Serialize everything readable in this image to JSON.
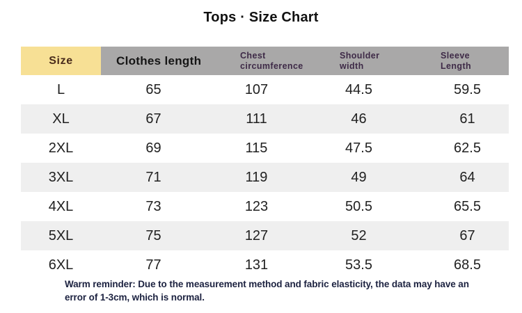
{
  "title": "Tops · Size Chart",
  "table": {
    "header": {
      "size": "Size",
      "clothes_length": "Clothes length",
      "chest_line1": "Chest",
      "chest_line2": "circumference",
      "shoulder_line1": "Shoulder",
      "shoulder_line2": "width",
      "sleeve_line1": "Sleeve",
      "sleeve_line2": "Length"
    },
    "rows": [
      {
        "size": "L",
        "clothes_length": "65",
        "chest": "107",
        "shoulder": "44.5",
        "sleeve": "59.5"
      },
      {
        "size": "XL",
        "clothes_length": "67",
        "chest": "111",
        "shoulder": "46",
        "sleeve": "61"
      },
      {
        "size": "2XL",
        "clothes_length": "69",
        "chest": "115",
        "shoulder": "47.5",
        "sleeve": "62.5"
      },
      {
        "size": "3XL",
        "clothes_length": "71",
        "chest": "119",
        "shoulder": "49",
        "sleeve": "64"
      },
      {
        "size": "4XL",
        "clothes_length": "73",
        "chest": "123",
        "shoulder": "50.5",
        "sleeve": "65.5"
      },
      {
        "size": "5XL",
        "clothes_length": "75",
        "chest": "127",
        "shoulder": "52",
        "sleeve": "67"
      },
      {
        "size": "6XL",
        "clothes_length": "77",
        "chest": "131",
        "shoulder": "53.5",
        "sleeve": "68.5"
      }
    ]
  },
  "reminder": "Warm reminder: Due to the measurement method and fabric elasticity, the data may have an error of 1-3cm, which is normal.",
  "colors": {
    "size_header_bg": "#F7E095",
    "header_bg": "#A9A8A8",
    "header_small_text": "#3E2A47",
    "size_header_text": "#4A2C1C",
    "row_stripe": "#EFEFEF",
    "reminder_text": "#1C2240"
  },
  "chart_data": {
    "type": "table",
    "title": "Tops · Size Chart",
    "columns": [
      "Size",
      "Clothes length",
      "Chest circumference",
      "Shoulder width",
      "Sleeve Length"
    ],
    "rows": [
      [
        "L",
        65,
        107,
        44.5,
        59.5
      ],
      [
        "XL",
        67,
        111,
        46,
        61
      ],
      [
        "2XL",
        69,
        115,
        47.5,
        62.5
      ],
      [
        "3XL",
        71,
        119,
        49,
        64
      ],
      [
        "4XL",
        73,
        123,
        50.5,
        65.5
      ],
      [
        "5XL",
        75,
        127,
        52,
        67
      ],
      [
        "6XL",
        77,
        131,
        53.5,
        68.5
      ]
    ],
    "note": "Warm reminder: Due to the measurement method and fabric elasticity, the data may have an error of 1-3cm, which is normal."
  }
}
